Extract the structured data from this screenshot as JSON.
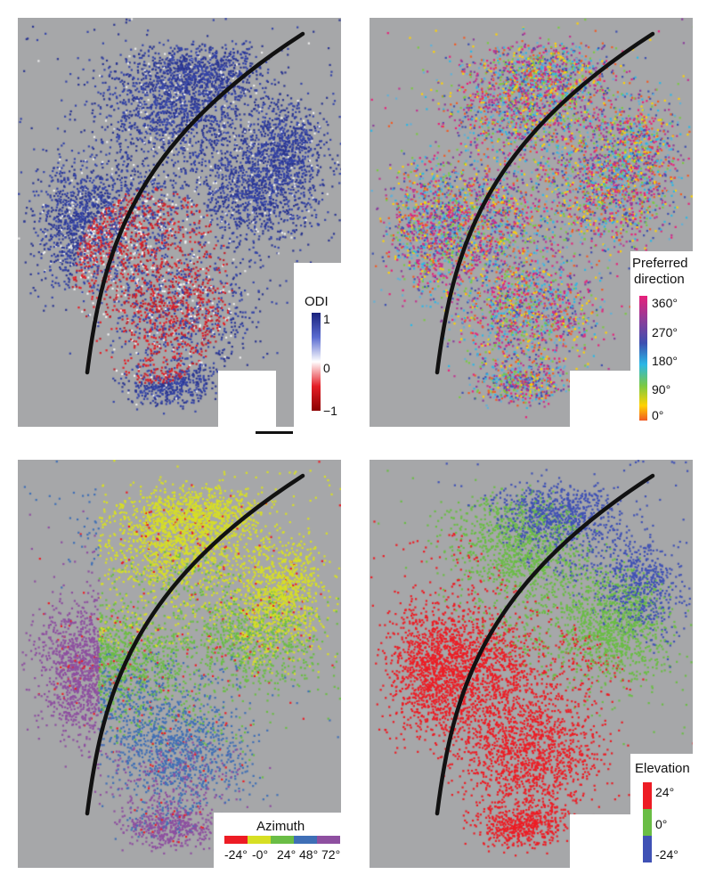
{
  "panels": [
    {
      "id": "odi",
      "legend": {
        "title": "ODI",
        "ticks": [
          "1",
          "0",
          "−1"
        ],
        "colors": [
          "#1a237e",
          "#ffffff",
          "#8b0000"
        ]
      }
    },
    {
      "id": "direction",
      "legend": {
        "title_line1": "Preferred",
        "title_line2": "direction",
        "ticks": [
          "360°",
          "270°",
          "180°",
          "90°",
          "0°"
        ],
        "colors": [
          "#e8207a",
          "#6b3fa0",
          "#2ab7e6",
          "#7ac943",
          "#ffd200",
          "#f15a24"
        ]
      }
    },
    {
      "id": "azimuth",
      "legend": {
        "title": "Azimuth",
        "ticks": [
          "-24°",
          "-0°",
          "24°",
          "48°",
          "72°"
        ],
        "colors": [
          "#ed1c24",
          "#d7df23",
          "#6abd45",
          "#3f6fb6",
          "#8e4fa0"
        ]
      }
    },
    {
      "id": "elevation",
      "legend": {
        "title": "Elevation",
        "ticks": [
          "24°",
          "0°",
          "-24°"
        ],
        "colors": [
          "#ed1c24",
          "#6abd45",
          "#3f51b5"
        ]
      }
    }
  ],
  "colors": {
    "background_gray": "#a6a7a9",
    "arc": "#111111"
  }
}
